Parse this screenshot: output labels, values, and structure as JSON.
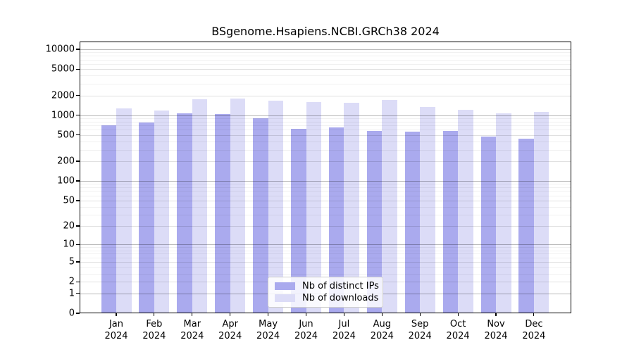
{
  "chart_data": {
    "type": "bar",
    "title": "BSgenome.Hsapiens.NCBI.GRCh38 2024",
    "months": [
      "Jan",
      "Feb",
      "Mar",
      "Apr",
      "May",
      "Jun",
      "Jul",
      "Aug",
      "Sep",
      "Oct",
      "Nov",
      "Dec"
    ],
    "year_label": "2024",
    "series": [
      {
        "name": "Nb of distinct IPs",
        "color": "#aaaaee",
        "values": [
          700,
          780,
          1070,
          1040,
          900,
          620,
          650,
          585,
          570,
          580,
          475,
          440
        ]
      },
      {
        "name": "Nb of downloads",
        "color": "#dcdcf7",
        "values": [
          1260,
          1180,
          1750,
          1790,
          1660,
          1580,
          1545,
          1700,
          1335,
          1210,
          1070,
          1120
        ]
      }
    ],
    "y_scale": "log1p",
    "y_ticks": [
      0,
      1,
      2,
      5,
      10,
      20,
      50,
      100,
      200,
      500,
      1000,
      2000,
      5000,
      10000
    ],
    "y_max": 10000,
    "xlabel": "",
    "ylabel": "",
    "grid": "both",
    "legend_position": "bottom-center"
  }
}
